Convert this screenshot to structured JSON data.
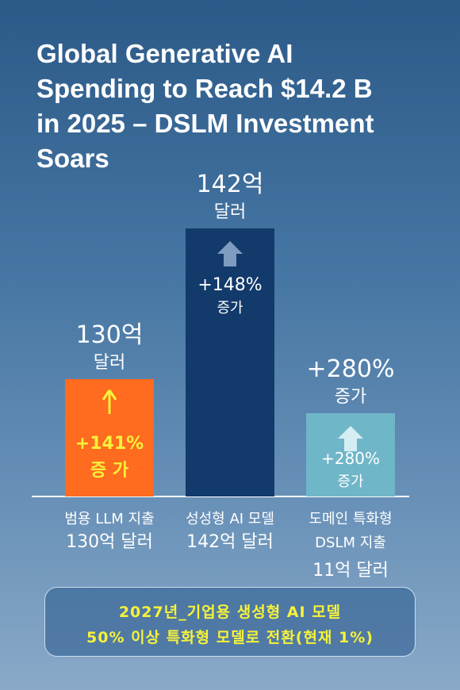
{
  "title": "Global Generative AI\nSpending to Reach $14.2 B\nin 2025 – DSLM Investment\nSoars",
  "chart_data": {
    "type": "bar",
    "title": "Global Generative AI Spending to Reach $14.2 B in 2025 – DSLM Investment Soars",
    "categories": [
      "범용 LLM 지출",
      "성성형 AI 모델",
      "도메인 특화형 DSLM 지출"
    ],
    "values": [
      130,
      142,
      11
    ],
    "value_labels": [
      [
        "130억",
        "달러"
      ],
      [
        "142억",
        "달러"
      ],
      [
        "+280%",
        "증가"
      ]
    ],
    "growth_labels": [
      [
        "+141%",
        "증 가"
      ],
      [
        "+148%",
        "증가"
      ],
      [
        "+280%",
        "증가"
      ]
    ],
    "category_lines": [
      [
        "범용 LLM 지출",
        "130억 달러"
      ],
      [
        "성성형 AI 모델",
        "142억 달러"
      ],
      [
        "도메인 특화형",
        "DSLM 지출",
        "11억 달러"
      ]
    ],
    "colors": [
      "#ff6b1f",
      "#123a6b",
      "#6fb6c8"
    ],
    "growth_colors": [
      "#f6f23a",
      "#ffffff",
      "#ffffff"
    ],
    "arrows": [
      "up-arrow-icon",
      "up-arrow-icon",
      "up-arrow-icon"
    ],
    "bar_heights_visual": [
      148,
      338,
      105
    ]
  },
  "callout": {
    "line1": "2027년_기업용 생성형 AI 모델",
    "line2": "50% 이상 특화형 모델로 전환(현재 1%)"
  }
}
